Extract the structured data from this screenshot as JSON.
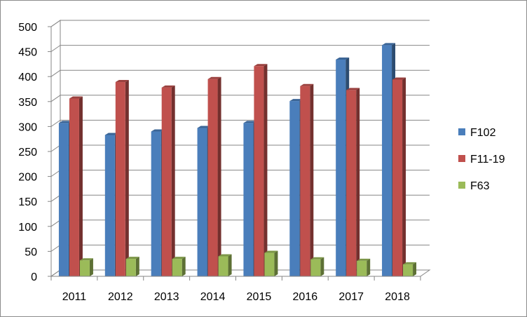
{
  "chart_data": {
    "type": "bar",
    "title": "",
    "xlabel": "",
    "ylabel": "",
    "categories": [
      "2011",
      "2012",
      "2013",
      "2014",
      "2015",
      "2016",
      "2017",
      "2018"
    ],
    "series": [
      {
        "name": "F102",
        "color": "#4a7ebb",
        "values": [
          307,
          283,
          290,
          297,
          307,
          351,
          434,
          463
        ]
      },
      {
        "name": "F11-19",
        "color": "#c0504d",
        "values": [
          356,
          389,
          378,
          395,
          421,
          381,
          373,
          394
        ]
      },
      {
        "name": "F63",
        "color": "#9bbb59",
        "values": [
          32,
          35,
          35,
          40,
          47,
          34,
          31,
          24
        ]
      }
    ],
    "ylim": [
      0,
      500
    ],
    "yticks": [
      0,
      50,
      100,
      150,
      200,
      250,
      300,
      350,
      400,
      450,
      500
    ],
    "grid": true,
    "legend_position": "right",
    "style": "3d-clustered-column"
  }
}
